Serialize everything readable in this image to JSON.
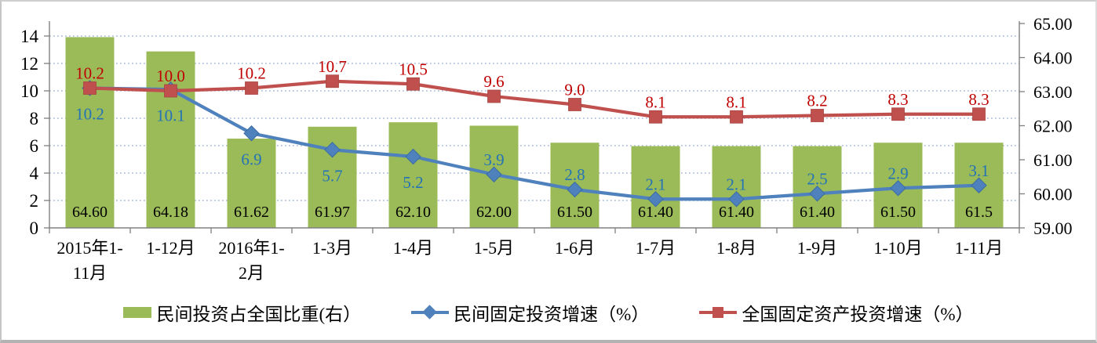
{
  "chart_data": {
    "type": "combo-bar-line",
    "categories": [
      "2015年1-11月",
      "1-12月",
      "2016年1-2月",
      "1-3月",
      "1-4月",
      "1-5月",
      "1-6月",
      "1-7月",
      "1-8月",
      "1-9月",
      "1-10月",
      "1-11月"
    ],
    "categories_lines": [
      [
        "2015年1-",
        "11月"
      ],
      [
        "1-12月"
      ],
      [
        "2016年1-",
        "2月"
      ],
      [
        "1-3月"
      ],
      [
        "1-4月"
      ],
      [
        "1-5月"
      ],
      [
        "1-6月"
      ],
      [
        "1-7月"
      ],
      [
        "1-8月"
      ],
      [
        "1-9月"
      ],
      [
        "1-10月"
      ],
      [
        "1-11月"
      ]
    ],
    "left_axis": {
      "min": 0,
      "max": 14,
      "step": 2,
      "ticks": [
        "0",
        "2",
        "4",
        "6",
        "8",
        "10",
        "12",
        "14"
      ]
    },
    "right_axis": {
      "min": 59,
      "max": 65,
      "step": 1,
      "ticks": [
        "59.00",
        "60.00",
        "61.00",
        "62.00",
        "63.00",
        "64.00",
        "65.00"
      ]
    },
    "grid": {
      "horizontal_dotted": true,
      "at_left_values": [
        2,
        4,
        6,
        8,
        10,
        12,
        14
      ]
    },
    "series": [
      {
        "name": "民间投资占全国比重(右）",
        "type": "bar",
        "axis": "right",
        "color": "#9BBB59",
        "label_color": "#000000",
        "values": [
          64.6,
          64.18,
          61.62,
          61.97,
          62.1,
          62.0,
          61.5,
          61.4,
          61.4,
          61.4,
          61.5,
          61.5
        ],
        "labels": [
          "64.60",
          "64.18",
          "61.62",
          "61.97",
          "62.10",
          "62.00",
          "61.50",
          "61.40",
          "61.40",
          "61.40",
          "61.50",
          "61.5"
        ]
      },
      {
        "name": "民间固定投资增速（%）",
        "type": "line",
        "marker": "diamond",
        "axis": "left",
        "color": "#4F81BD",
        "label_color": "#2373B6",
        "values": [
          10.2,
          10.1,
          6.9,
          5.7,
          5.2,
          3.9,
          2.8,
          2.1,
          2.1,
          2.5,
          2.9,
          3.1
        ],
        "labels": [
          "10.2",
          "10.1",
          "6.9",
          "5.7",
          "5.2",
          "3.9",
          "2.8",
          "2.1",
          "2.1",
          "2.5",
          "2.9",
          "3.1"
        ],
        "label_below": [
          true,
          true,
          true,
          true,
          true,
          false,
          false,
          false,
          false,
          false,
          false,
          false
        ]
      },
      {
        "name": "全国固定资产投资增速（%）",
        "type": "line",
        "marker": "square",
        "axis": "left",
        "color": "#C0504D",
        "label_color": "#C00000",
        "values": [
          10.2,
          10.0,
          10.2,
          10.7,
          10.5,
          9.6,
          9.0,
          8.1,
          8.1,
          8.2,
          8.3,
          8.3
        ],
        "labels": [
          "10.2",
          "10.0",
          "10.2",
          "10.7",
          "10.5",
          "9.6",
          "9.0",
          "8.1",
          "8.1",
          "8.2",
          "8.3",
          "8.3"
        ],
        "label_below": [
          false,
          false,
          false,
          false,
          false,
          false,
          false,
          false,
          false,
          false,
          false,
          false
        ]
      }
    ],
    "legend": {
      "position": "bottom"
    },
    "colors": {
      "grid": "#B3C4DE",
      "axis": "#808080",
      "tick_text": "#000000"
    }
  }
}
